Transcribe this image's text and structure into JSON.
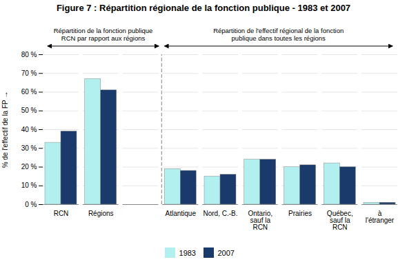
{
  "chart_data": {
    "type": "bar",
    "title": "Figure 7 : Répartition régionale de la fonction publique - 1983 et 2007",
    "ylabel": "% de l'effectif de la FP",
    "categories": [
      "RCN",
      "Régions",
      null,
      "Atlantique",
      "Nord, C.-B.",
      "Ontario,\nsauf la\nRCN",
      "Prairies",
      "Québec,\nsauf la\nRCN",
      "à\nl'étranger"
    ],
    "series": [
      {
        "name": "1983",
        "color": "#b2f0f0",
        "values": [
          33,
          67,
          null,
          19,
          15,
          24,
          20,
          22,
          1
        ]
      },
      {
        "name": "2007",
        "color": "#1a3a6b",
        "values": [
          39,
          61,
          null,
          18,
          16,
          24,
          21,
          20,
          1
        ]
      }
    ],
    "ylim": [
      0,
      80
    ],
    "yticks": [
      {
        "value": 0,
        "label": "0 %"
      },
      {
        "value": 10,
        "label": "10 %"
      },
      {
        "value": 20,
        "label": "20 %"
      },
      {
        "value": 30,
        "label": "30 %"
      },
      {
        "value": 40,
        "label": "40 %"
      },
      {
        "value": 50,
        "label": "50 %"
      },
      {
        "value": 60,
        "label": "60 %"
      },
      {
        "value": 70,
        "label": "70 %"
      },
      {
        "value": 80,
        "label": "80 %"
      }
    ],
    "grid": true,
    "legend": "bottom",
    "annotations": [
      {
        "text": "Répartition de la fonction publique\nRCN par rapport aux régions",
        "from": "RCN"
      },
      {
        "text": "Répartition de l'effectif régional de la fonction\npublique dans toutes les régions",
        "from": "Atlantique"
      }
    ]
  }
}
